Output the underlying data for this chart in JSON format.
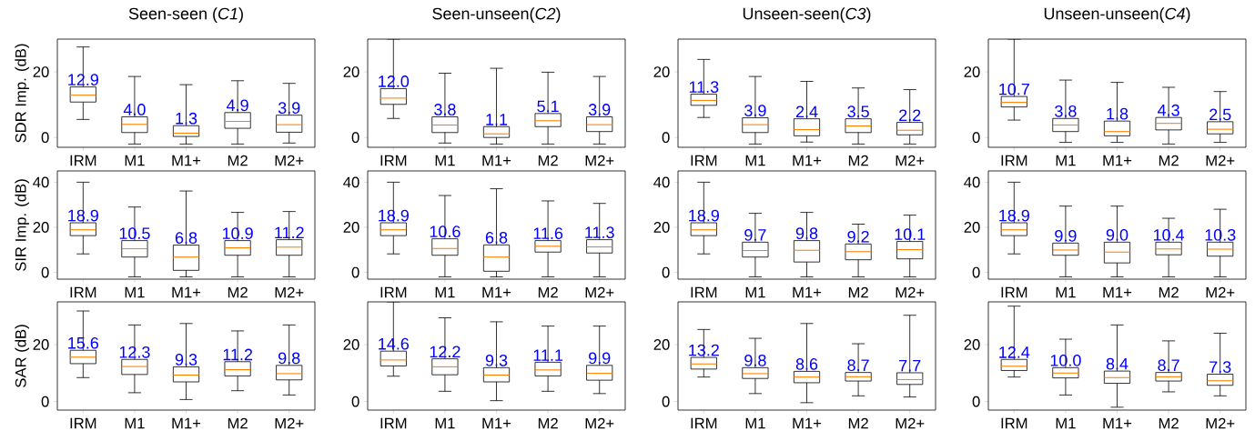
{
  "chart_data": [
    {
      "type": "box",
      "title": "Seen-seen (*C1*)",
      "ylabel": "SDR Imp. (dB)",
      "categories": [
        "IRM",
        "M1",
        "M1+",
        "M2",
        "M2+"
      ],
      "ylim": [
        -3,
        30
      ],
      "yticks": [
        0,
        20
      ],
      "boxes": [
        {
          "low": 5.5,
          "q1": 10.8,
          "median": 12.9,
          "q3": 15.4,
          "high": 27.6
        },
        {
          "low": -2,
          "q1": 1.5,
          "median": 4.0,
          "q3": 6.3,
          "high": 18.6
        },
        {
          "low": -2,
          "q1": 0.3,
          "median": 1.3,
          "q3": 3.6,
          "high": 16.1
        },
        {
          "low": -2,
          "q1": 2.8,
          "median": 4.9,
          "q3": 7.6,
          "high": 17.3
        },
        {
          "low": -1.7,
          "q1": 1.6,
          "median": 3.9,
          "q3": 6.8,
          "high": 16.5
        }
      ],
      "annotations": [
        "12.9",
        "4.0",
        "1.3",
        "4.9",
        "3.9"
      ]
    },
    {
      "type": "box",
      "title": "Seen-unseen(*C2*)",
      "categories": [
        "IRM",
        "M1",
        "M1+",
        "M2",
        "M2+"
      ],
      "ylim": [
        -3,
        30
      ],
      "yticks": [
        0,
        20
      ],
      "boxes": [
        {
          "low": 5.8,
          "q1": 10.1,
          "median": 12.0,
          "q3": 14.9,
          "high": 30
        },
        {
          "low": -1.7,
          "q1": 1.5,
          "median": 3.8,
          "q3": 6.3,
          "high": 19.6
        },
        {
          "low": -2,
          "q1": 0,
          "median": 1.1,
          "q3": 3.3,
          "high": 21.1
        },
        {
          "low": -2,
          "q1": 3.3,
          "median": 5.1,
          "q3": 7.3,
          "high": 19.9
        },
        {
          "low": -2,
          "q1": 1.8,
          "median": 3.9,
          "q3": 6.3,
          "high": 18.6
        }
      ],
      "annotations": [
        "12.0",
        "3.8",
        "1.1",
        "5.1",
        "3.9"
      ]
    },
    {
      "type": "box",
      "title": "Unseen-seen(*C3*)",
      "categories": [
        "IRM",
        "M1",
        "M1+",
        "M2",
        "M2+"
      ],
      "ylim": [
        -3,
        30
      ],
      "yticks": [
        0,
        20
      ],
      "boxes": [
        {
          "low": 6.1,
          "q1": 9.8,
          "median": 11.3,
          "q3": 13.2,
          "high": 23.8
        },
        {
          "low": -2,
          "q1": 1.5,
          "median": 3.9,
          "q3": 6.0,
          "high": 18.6
        },
        {
          "low": -1.4,
          "q1": 0.5,
          "median": 2.4,
          "q3": 5.7,
          "high": 17.1
        },
        {
          "low": -2,
          "q1": 1.5,
          "median": 3.5,
          "q3": 5.7,
          "high": 15.1
        },
        {
          "low": -2,
          "q1": 0.8,
          "median": 2.2,
          "q3": 4.6,
          "high": 14.6
        }
      ],
      "annotations": [
        "11.3",
        "3.9",
        "2.4",
        "3.5",
        "2.2"
      ]
    },
    {
      "type": "box",
      "title": "Unseen-unseen(*C4*)",
      "categories": [
        "IRM",
        "M1",
        "M1+",
        "M2",
        "M2+"
      ],
      "ylim": [
        -3,
        30
      ],
      "yticks": [
        0,
        20
      ],
      "boxes": [
        {
          "low": 5.3,
          "q1": 9.3,
          "median": 10.7,
          "q3": 12.5,
          "high": 30
        },
        {
          "low": -1.5,
          "q1": 1.8,
          "median": 3.8,
          "q3": 5.8,
          "high": 17.5
        },
        {
          "low": -1.5,
          "q1": 0.5,
          "median": 1.8,
          "q3": 5.0,
          "high": 16.8
        },
        {
          "low": -2,
          "q1": 2.3,
          "median": 4.3,
          "q3": 6.1,
          "high": 15.3
        },
        {
          "low": -1.5,
          "q1": 1.1,
          "median": 2.5,
          "q3": 4.8,
          "high": 14.0
        }
      ],
      "annotations": [
        "10.7",
        "3.8",
        "1.8",
        "4.3",
        "2.5"
      ]
    },
    {
      "type": "box",
      "ylabel": "SIR Imp. (dB)",
      "categories": [
        "IRM",
        "M1",
        "M1+",
        "M2",
        "M2+"
      ],
      "ylim": [
        -3,
        45
      ],
      "yticks": [
        0,
        20,
        40
      ],
      "boxes": [
        {
          "low": 8.2,
          "q1": 16.3,
          "median": 18.9,
          "q3": 22.0,
          "high": 40
        },
        {
          "low": -2,
          "q1": 6.8,
          "median": 10.5,
          "q3": 14.1,
          "high": 29.0
        },
        {
          "low": -2,
          "q1": 0.9,
          "median": 6.8,
          "q3": 12.1,
          "high": 36.1
        },
        {
          "low": -2,
          "q1": 7.6,
          "median": 10.9,
          "q3": 14.1,
          "high": 26.6
        },
        {
          "low": -2,
          "q1": 7.6,
          "median": 11.2,
          "q3": 14.5,
          "high": 27.0
        }
      ],
      "annotations": [
        "18.9",
        "10.5",
        "6.8",
        "10.9",
        "11.2"
      ]
    },
    {
      "type": "box",
      "categories": [
        "IRM",
        "M1",
        "M1+",
        "M2",
        "M2+"
      ],
      "ylim": [
        -3,
        45
      ],
      "yticks": [
        0,
        20,
        40
      ],
      "boxes": [
        {
          "low": 8.2,
          "q1": 16.3,
          "median": 18.9,
          "q3": 22.0,
          "high": 40
        },
        {
          "low": -2,
          "q1": 7.6,
          "median": 10.6,
          "q3": 14.9,
          "high": 34.1
        },
        {
          "low": -2,
          "q1": 0.5,
          "median": 6.8,
          "q3": 12.2,
          "high": 37.1
        },
        {
          "low": -2,
          "q1": 9.0,
          "median": 11.6,
          "q3": 14.1,
          "high": 31.7
        },
        {
          "low": -2,
          "q1": 8.6,
          "median": 11.3,
          "q3": 14.5,
          "high": 30.6
        }
      ],
      "annotations": [
        "18.9",
        "10.6",
        "6.8",
        "11.6",
        "11.3"
      ]
    },
    {
      "type": "box",
      "categories": [
        "IRM",
        "M1",
        "M1+",
        "M2",
        "M2+"
      ],
      "ylim": [
        -3,
        45
      ],
      "yticks": [
        0,
        20,
        40
      ],
      "boxes": [
        {
          "low": 8.2,
          "q1": 16.3,
          "median": 18.9,
          "q3": 22.0,
          "high": 40
        },
        {
          "low": -2,
          "q1": 6.8,
          "median": 9.7,
          "q3": 13.4,
          "high": 26.2
        },
        {
          "low": -2,
          "q1": 4.6,
          "median": 9.8,
          "q3": 14.1,
          "high": 26.6
        },
        {
          "low": -2,
          "q1": 5.6,
          "median": 9.2,
          "q3": 12.6,
          "high": 21.4
        },
        {
          "low": -2,
          "q1": 6.0,
          "median": 10.1,
          "q3": 13.7,
          "high": 25.4
        }
      ],
      "annotations": [
        "18.9",
        "9.7",
        "9.8",
        "9.2",
        "10.1"
      ]
    },
    {
      "type": "box",
      "categories": [
        "IRM",
        "M1",
        "M1+",
        "M2",
        "M2+"
      ],
      "ylim": [
        -3,
        45
      ],
      "yticks": [
        0,
        20,
        40
      ],
      "boxes": [
        {
          "low": 8.2,
          "q1": 16.3,
          "median": 18.9,
          "q3": 22.0,
          "high": 40
        },
        {
          "low": -2,
          "q1": 7.6,
          "median": 9.9,
          "q3": 13.0,
          "high": 29.4
        },
        {
          "low": -2,
          "q1": 4.2,
          "median": 9.0,
          "q3": 13.4,
          "high": 29.4
        },
        {
          "low": -2,
          "q1": 7.8,
          "median": 10.4,
          "q3": 13.4,
          "high": 24.0
        },
        {
          "low": -2,
          "q1": 7.2,
          "median": 10.3,
          "q3": 13.4,
          "high": 28.0
        }
      ],
      "annotations": [
        "18.9",
        "9.9",
        "9.0",
        "10.4",
        "10.3"
      ]
    },
    {
      "type": "box",
      "ylabel": "SAR (dB)",
      "categories": [
        "IRM",
        "M1",
        "M1+",
        "M2",
        "M2+"
      ],
      "ylim": [
        -3,
        35
      ],
      "yticks": [
        0,
        20
      ],
      "boxes": [
        {
          "low": 8.4,
          "q1": 13.3,
          "median": 15.6,
          "q3": 18.0,
          "high": 31.8
        },
        {
          "low": 3.1,
          "q1": 9.5,
          "median": 12.3,
          "q3": 14.8,
          "high": 26.9
        },
        {
          "low": 0.7,
          "q1": 6.9,
          "median": 9.3,
          "q3": 12.2,
          "high": 27.4
        },
        {
          "low": 3.8,
          "q1": 9.0,
          "median": 11.2,
          "q3": 14.0,
          "high": 24.8
        },
        {
          "low": 2.3,
          "q1": 7.6,
          "median": 9.8,
          "q3": 12.7,
          "high": 26.9
        }
      ],
      "annotations": [
        "15.6",
        "12.3",
        "9.3",
        "11.2",
        "9.8"
      ]
    },
    {
      "type": "box",
      "categories": [
        "IRM",
        "M1",
        "M1+",
        "M2",
        "M2+"
      ],
      "ylim": [
        -3,
        35
      ],
      "yticks": [
        0,
        20
      ],
      "boxes": [
        {
          "low": 8.9,
          "q1": 12.5,
          "median": 14.6,
          "q3": 17.7,
          "high": 35
        },
        {
          "low": 3.6,
          "q1": 9.4,
          "median": 12.2,
          "q3": 15.0,
          "high": 29.4
        },
        {
          "low": 0.3,
          "q1": 6.9,
          "median": 9.3,
          "q3": 11.9,
          "high": 28.0
        },
        {
          "low": 3.6,
          "q1": 9.0,
          "median": 11.1,
          "q3": 13.8,
          "high": 26.5
        },
        {
          "low": 2.8,
          "q1": 7.5,
          "median": 9.9,
          "q3": 12.7,
          "high": 26.5
        }
      ],
      "annotations": [
        "14.6",
        "12.2",
        "9.3",
        "11.1",
        "9.9"
      ]
    },
    {
      "type": "box",
      "categories": [
        "IRM",
        "M1",
        "M1+",
        "M2",
        "M2+"
      ],
      "ylim": [
        -3,
        35
      ],
      "yticks": [
        0,
        20
      ],
      "boxes": [
        {
          "low": 8.6,
          "q1": 11.4,
          "median": 13.2,
          "q3": 15.5,
          "high": 25.3
        },
        {
          "low": 2.8,
          "q1": 8.1,
          "median": 9.8,
          "q3": 11.9,
          "high": 22.2
        },
        {
          "low": -0.4,
          "q1": 6.6,
          "median": 8.6,
          "q3": 10.6,
          "high": 27.4
        },
        {
          "low": 2.0,
          "q1": 7.2,
          "median": 8.7,
          "q3": 10.2,
          "high": 20.3
        },
        {
          "low": 1.6,
          "q1": 6.0,
          "median": 7.7,
          "q3": 10.1,
          "high": 30.3
        }
      ],
      "annotations": [
        "13.2",
        "9.8",
        "8.6",
        "8.7",
        "7.7"
      ]
    },
    {
      "type": "box",
      "categories": [
        "IRM",
        "M1",
        "M1+",
        "M2",
        "M2+"
      ],
      "ylim": [
        -3,
        35
      ],
      "yticks": [
        0,
        20
      ],
      "boxes": [
        {
          "low": 8.6,
          "q1": 10.9,
          "median": 12.4,
          "q3": 14.8,
          "high": 33.5
        },
        {
          "low": 2.3,
          "q1": 8.3,
          "median": 10.0,
          "q3": 11.9,
          "high": 21.9
        },
        {
          "low": -2,
          "q1": 6.4,
          "median": 8.4,
          "q3": 10.7,
          "high": 26.9
        },
        {
          "low": 3.4,
          "q1": 7.2,
          "median": 8.7,
          "q3": 10.2,
          "high": 21.3
        },
        {
          "low": 2.0,
          "q1": 5.7,
          "median": 7.3,
          "q3": 9.6,
          "high": 24.0
        }
      ],
      "annotations": [
        "12.4",
        "10.0",
        "8.4",
        "8.7",
        "7.3"
      ]
    }
  ]
}
